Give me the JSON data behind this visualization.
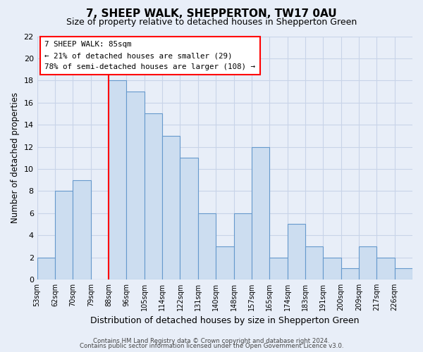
{
  "title": "7, SHEEP WALK, SHEPPERTON, TW17 0AU",
  "subtitle": "Size of property relative to detached houses in Shepperton Green",
  "xlabel": "Distribution of detached houses by size in Shepperton Green",
  "ylabel": "Number of detached properties",
  "bin_labels": [
    "53sqm",
    "62sqm",
    "70sqm",
    "79sqm",
    "88sqm",
    "96sqm",
    "105sqm",
    "114sqm",
    "122sqm",
    "131sqm",
    "140sqm",
    "148sqm",
    "157sqm",
    "165sqm",
    "174sqm",
    "183sqm",
    "191sqm",
    "200sqm",
    "209sqm",
    "217sqm",
    "226sqm"
  ],
  "bar_heights": [
    2,
    8,
    9,
    0,
    18,
    17,
    15,
    13,
    11,
    6,
    3,
    6,
    12,
    2,
    5,
    3,
    2,
    1,
    3,
    2,
    1
  ],
  "bar_fill_color": "#ccddf0",
  "bar_edge_color": "#6699cc",
  "vline_color": "red",
  "vline_position": 4,
  "ylim": [
    0,
    22
  ],
  "yticks": [
    0,
    2,
    4,
    6,
    8,
    10,
    12,
    14,
    16,
    18,
    20,
    22
  ],
  "annotation_title": "7 SHEEP WALK: 85sqm",
  "annotation_line1": "← 21% of detached houses are smaller (29)",
  "annotation_line2": "78% of semi-detached houses are larger (108) →",
  "annotation_box_color": "white",
  "annotation_box_edge": "red",
  "footer1": "Contains HM Land Registry data © Crown copyright and database right 2024.",
  "footer2": "Contains public sector information licensed under the Open Government Licence v3.0.",
  "background_color": "#e8eef8",
  "grid_color": "#c8d4e8",
  "title_fontsize": 11,
  "subtitle_fontsize": 9
}
